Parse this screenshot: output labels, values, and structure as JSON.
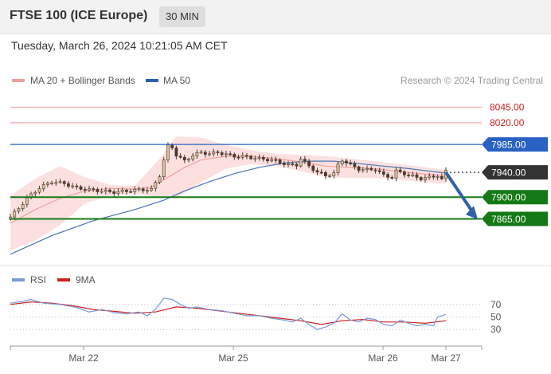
{
  "header": {
    "title": "FTSE 100 (ICE Europe)",
    "interval": "30 MIN"
  },
  "datetime": "Tuesday, March 26, 2024 10:21:05 AM CET",
  "legend": {
    "ma20_bollinger": "MA 20 + Bollinger Bands",
    "ma50": "MA 50",
    "research": "Research © 2024 Trading Central"
  },
  "rsi_legend": {
    "rsi": "RSI",
    "ma9": "9MA"
  },
  "colors": {
    "up_candle": "#d9c4a0",
    "down_candle": "#4a3a2a",
    "ma20": "#f0a0a0",
    "bollinger_fill": "#fbd6d6",
    "ma50": "#4a74b4",
    "resistance": "#f4a8a8",
    "blue_level": "#2a62c4",
    "support": "#157a15",
    "current": "#333333",
    "rsi_line": "#7a9ad8",
    "rsi_ma": "#cc2222",
    "arrow": "#2f62a8"
  },
  "chart_data": {
    "type": "candlestick",
    "y_axis": {
      "min": 7800,
      "max": 8070
    },
    "x_ticks": [
      "Mar 22",
      "Mar 25",
      "Mar 26",
      "Mar 27"
    ],
    "price_levels": [
      {
        "label": "8045.00",
        "value": 8045,
        "kind": "resistance"
      },
      {
        "label": "8020.00",
        "value": 8020,
        "kind": "resistance"
      },
      {
        "label": "7985.00",
        "value": 7985,
        "kind": "ma-resistance"
      },
      {
        "label": "7940.00",
        "value": 7940,
        "kind": "current"
      },
      {
        "label": "7900.00",
        "value": 7900,
        "kind": "support"
      },
      {
        "label": "7865.00",
        "value": 7865,
        "kind": "support"
      }
    ],
    "close_path": [
      [
        0,
        7868
      ],
      [
        2,
        7882
      ],
      [
        4,
        7898
      ],
      [
        7,
        7915
      ],
      [
        10,
        7925
      ],
      [
        13,
        7922
      ],
      [
        16,
        7915
      ],
      [
        19,
        7912
      ],
      [
        22,
        7910
      ],
      [
        25,
        7908
      ],
      [
        28,
        7910
      ],
      [
        31,
        7912
      ],
      [
        34,
        7912
      ],
      [
        36,
        7935
      ],
      [
        37,
        7960
      ],
      [
        38,
        7982
      ],
      [
        39,
        7980
      ],
      [
        40,
        7968
      ],
      [
        42,
        7958
      ],
      [
        44,
        7968
      ],
      [
        46,
        7972
      ],
      [
        48,
        7970
      ],
      [
        50,
        7972
      ],
      [
        52,
        7969
      ],
      [
        54,
        7966
      ],
      [
        57,
        7965
      ],
      [
        60,
        7962
      ],
      [
        63,
        7960
      ],
      [
        65,
        7956
      ],
      [
        67,
        7952
      ],
      [
        69,
        7952
      ],
      [
        70,
        7962
      ],
      [
        72,
        7950
      ],
      [
        74,
        7940
      ],
      [
        76,
        7935
      ],
      [
        78,
        7938
      ],
      [
        79,
        7952
      ],
      [
        80,
        7960
      ],
      [
        82,
        7952
      ],
      [
        84,
        7945
      ],
      [
        86,
        7944
      ],
      [
        88,
        7945
      ],
      [
        90,
        7935
      ],
      [
        92,
        7932
      ],
      [
        93,
        7942
      ],
      [
        95,
        7938
      ],
      [
        97,
        7934
      ],
      [
        99,
        7930
      ],
      [
        101,
        7932
      ],
      [
        103,
        7935
      ],
      [
        104,
        7928
      ],
      [
        105,
        7942
      ]
    ],
    "ma50_path": [
      [
        0,
        7808
      ],
      [
        10,
        7838
      ],
      [
        20,
        7862
      ],
      [
        30,
        7880
      ],
      [
        37,
        7895
      ],
      [
        42,
        7910
      ],
      [
        48,
        7925
      ],
      [
        54,
        7938
      ],
      [
        60,
        7948
      ],
      [
        66,
        7955
      ],
      [
        72,
        7958
      ],
      [
        78,
        7958
      ],
      [
        84,
        7954
      ],
      [
        90,
        7950
      ],
      [
        96,
        7946
      ],
      [
        102,
        7941
      ],
      [
        105,
        7939
      ]
    ],
    "ma20_path": [
      [
        0,
        7858
      ],
      [
        6,
        7880
      ],
      [
        12,
        7898
      ],
      [
        18,
        7910
      ],
      [
        24,
        7914
      ],
      [
        30,
        7913
      ],
      [
        34,
        7916
      ],
      [
        38,
        7932
      ],
      [
        42,
        7948
      ],
      [
        46,
        7960
      ],
      [
        52,
        7966
      ],
      [
        58,
        7966
      ],
      [
        64,
        7962
      ],
      [
        70,
        7957
      ],
      [
        76,
        7950
      ],
      [
        82,
        7948
      ],
      [
        88,
        7946
      ],
      [
        94,
        7941
      ],
      [
        100,
        7937
      ],
      [
        105,
        7935
      ]
    ],
    "bb_upper": [
      [
        0,
        7902
      ],
      [
        6,
        7930
      ],
      [
        12,
        7950
      ],
      [
        18,
        7932
      ],
      [
        24,
        7920
      ],
      [
        30,
        7918
      ],
      [
        36,
        7962
      ],
      [
        40,
        7998
      ],
      [
        46,
        7996
      ],
      [
        52,
        7984
      ],
      [
        58,
        7976
      ],
      [
        64,
        7970
      ],
      [
        70,
        7968
      ],
      [
        76,
        7966
      ],
      [
        82,
        7962
      ],
      [
        88,
        7958
      ],
      [
        94,
        7953
      ],
      [
        100,
        7948
      ],
      [
        105,
        7944
      ]
    ],
    "bb_lower": [
      [
        0,
        7814
      ],
      [
        6,
        7830
      ],
      [
        12,
        7855
      ],
      [
        18,
        7890
      ],
      [
        24,
        7902
      ],
      [
        30,
        7905
      ],
      [
        36,
        7900
      ],
      [
        40,
        7898
      ],
      [
        46,
        7924
      ],
      [
        52,
        7946
      ],
      [
        58,
        7953
      ],
      [
        64,
        7950
      ],
      [
        70,
        7942
      ],
      [
        76,
        7932
      ],
      [
        82,
        7931
      ],
      [
        88,
        7931
      ],
      [
        94,
        7928
      ],
      [
        100,
        7924
      ],
      [
        105,
        7922
      ]
    ],
    "rsi": {
      "y_ticks": [
        70,
        50,
        30
      ],
      "y_range": [
        15,
        85
      ],
      "rsi_path": [
        [
          0,
          72
        ],
        [
          3,
          75
        ],
        [
          5,
          78
        ],
        [
          8,
          72
        ],
        [
          12,
          70
        ],
        [
          16,
          65
        ],
        [
          19,
          58
        ],
        [
          22,
          62
        ],
        [
          25,
          57
        ],
        [
          28,
          55
        ],
        [
          31,
          58
        ],
        [
          33,
          52
        ],
        [
          35,
          62
        ],
        [
          37,
          80
        ],
        [
          39,
          78
        ],
        [
          41,
          70
        ],
        [
          43,
          64
        ],
        [
          45,
          66
        ],
        [
          48,
          62
        ],
        [
          51,
          60
        ],
        [
          54,
          56
        ],
        [
          57,
          52
        ],
        [
          60,
          52
        ],
        [
          63,
          48
        ],
        [
          66,
          45
        ],
        [
          68,
          42
        ],
        [
          70,
          48
        ],
        [
          72,
          38
        ],
        [
          74,
          30
        ],
        [
          76,
          34
        ],
        [
          78,
          40
        ],
        [
          80,
          55
        ],
        [
          82,
          45
        ],
        [
          84,
          42
        ],
        [
          86,
          48
        ],
        [
          88,
          46
        ],
        [
          90,
          38
        ],
        [
          92,
          36
        ],
        [
          94,
          45
        ],
        [
          96,
          40
        ],
        [
          98,
          36
        ],
        [
          100,
          38
        ],
        [
          102,
          36
        ],
        [
          103,
          50
        ],
        [
          105,
          54
        ]
      ],
      "ma_path": [
        [
          0,
          70
        ],
        [
          5,
          74
        ],
        [
          10,
          72
        ],
        [
          15,
          68
        ],
        [
          20,
          62
        ],
        [
          25,
          59
        ],
        [
          30,
          56
        ],
        [
          35,
          58
        ],
        [
          40,
          66
        ],
        [
          45,
          64
        ],
        [
          50,
          60
        ],
        [
          55,
          56
        ],
        [
          60,
          52
        ],
        [
          65,
          48
        ],
        [
          70,
          44
        ],
        [
          75,
          38
        ],
        [
          80,
          44
        ],
        [
          85,
          46
        ],
        [
          90,
          42
        ],
        [
          95,
          42
        ],
        [
          100,
          40
        ],
        [
          105,
          44
        ]
      ]
    }
  }
}
